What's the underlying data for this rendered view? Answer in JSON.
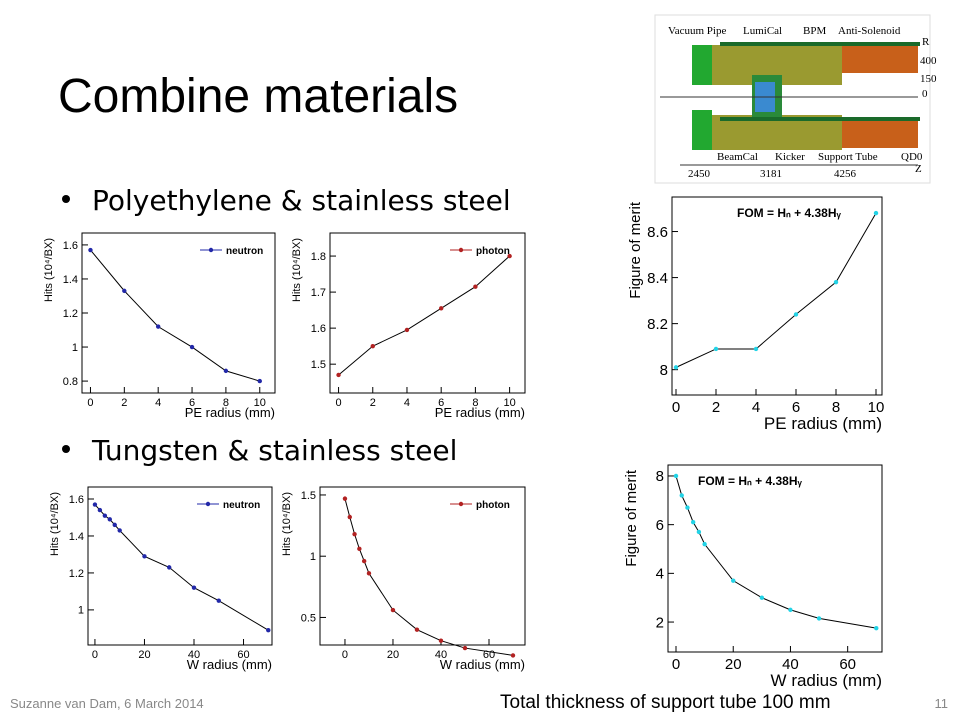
{
  "slide": {
    "title": "Combine materials",
    "bullets": [
      "Polyethylene & stainless steel",
      "Tungsten & stainless steel"
    ],
    "footer": {
      "author": "Suzanne van Dam, 6 March 2014",
      "note": "Total thickness of support tube 100 mm",
      "page": "11"
    }
  },
  "diagram": {
    "labels": [
      "Vacuum Pipe",
      "LumiCal",
      "BPM",
      "Anti-Solenoid",
      "BeamCal",
      "Kicker",
      "Support Tube",
      "QD0"
    ],
    "z_ticks": [
      "2450",
      "3181",
      "4256"
    ],
    "r_ticks": [
      "400",
      "150",
      "0"
    ],
    "z_axis": "Z",
    "r_axis": "R"
  },
  "chart_data": [
    {
      "type": "line",
      "xlabel": "PE radius (mm)",
      "ylabel": "Hits (10⁴/BX)",
      "x": [
        0,
        2,
        4,
        6,
        8,
        10
      ],
      "series": [
        {
          "name": "neutron",
          "color": "#2228a8",
          "values": [
            1.57,
            1.33,
            1.12,
            1.0,
            0.86,
            0.8
          ]
        }
      ],
      "xlim": [
        -0.5,
        10.9
      ],
      "ylim": [
        0.73,
        1.67
      ],
      "xticks": [
        0,
        2,
        4,
        6,
        8,
        10
      ],
      "yticks": [
        0.8,
        1,
        1.2,
        1.4,
        1.6
      ]
    },
    {
      "type": "line",
      "xlabel": "PE radius (mm)",
      "ylabel": "Hits (10⁴/BX)",
      "x": [
        0,
        2,
        4,
        6,
        8,
        10
      ],
      "series": [
        {
          "name": "photon",
          "color": "#b22222",
          "values": [
            1.47,
            1.55,
            1.595,
            1.655,
            1.715,
            1.8
          ]
        }
      ],
      "xlim": [
        -0.5,
        10.9
      ],
      "ylim": [
        1.42,
        1.864
      ],
      "xticks": [
        0,
        2,
        4,
        6,
        8,
        10
      ],
      "yticks": [
        1.5,
        1.6,
        1.7,
        1.8
      ]
    },
    {
      "type": "line",
      "xlabel": "PE radius (mm)",
      "ylabel": "Figure of merit",
      "annotation": "FOM = Hₙ + 4.38Hᵧ",
      "x": [
        0,
        2,
        4,
        6,
        8,
        10
      ],
      "values": [
        8.01,
        8.09,
        8.09,
        8.24,
        8.38,
        8.68
      ],
      "color": "#22d3e6",
      "xlim": [
        -0.2,
        10.3
      ],
      "ylim": [
        7.89,
        8.75
      ],
      "xticks": [
        0,
        2,
        4,
        6,
        8,
        10
      ],
      "yticks": [
        8,
        8.2,
        8.4,
        8.6
      ]
    },
    {
      "type": "line",
      "xlabel": "W radius (mm)",
      "ylabel": "Hits (10⁴/BX)",
      "x": [
        0,
        2,
        4,
        6,
        8,
        10,
        20,
        30,
        40,
        50,
        70
      ],
      "series": [
        {
          "name": "neutron",
          "color": "#2228a8",
          "values": [
            1.57,
            1.54,
            1.51,
            1.49,
            1.46,
            1.43,
            1.29,
            1.23,
            1.12,
            1.05,
            0.89
          ]
        }
      ],
      "xlim": [
        -2.8,
        71.5
      ],
      "ylim": [
        0.81,
        1.665
      ],
      "xticks": [
        0,
        20,
        40,
        60
      ],
      "yticks": [
        1,
        1.2,
        1.4,
        1.6
      ]
    },
    {
      "type": "line",
      "xlabel": "W radius (mm)",
      "ylabel": "Hits (10⁴/BX)",
      "x": [
        0,
        2,
        4,
        6,
        8,
        10,
        20,
        30,
        40,
        50,
        70
      ],
      "series": [
        {
          "name": "photon",
          "color": "#b22222",
          "values": [
            1.47,
            1.32,
            1.18,
            1.06,
            0.96,
            0.86,
            0.56,
            0.4,
            0.31,
            0.25,
            0.19
          ]
        }
      ],
      "xlim": [
        -10.4,
        75
      ],
      "ylim": [
        0.275,
        1.565
      ],
      "xticks": [
        0,
        20,
        40,
        60
      ],
      "yticks": [
        0.5,
        1,
        1.5
      ]
    },
    {
      "type": "line",
      "xlabel": "W radius (mm)",
      "ylabel": "Figure of merit",
      "annotation": "FOM = Hₙ + 4.38Hᵧ",
      "x": [
        0,
        2,
        4,
        6,
        8,
        10,
        20,
        30,
        40,
        50,
        70
      ],
      "values": [
        8.0,
        7.2,
        6.7,
        6.1,
        5.7,
        5.2,
        3.7,
        3.0,
        2.5,
        2.15,
        1.75
      ],
      "color": "#22d3e6",
      "xlim": [
        -2.8,
        72
      ],
      "ylim": [
        0.77,
        8.45
      ],
      "xticks": [
        0,
        20,
        40,
        60
      ],
      "yticks": [
        2,
        4,
        6,
        8
      ]
    }
  ]
}
